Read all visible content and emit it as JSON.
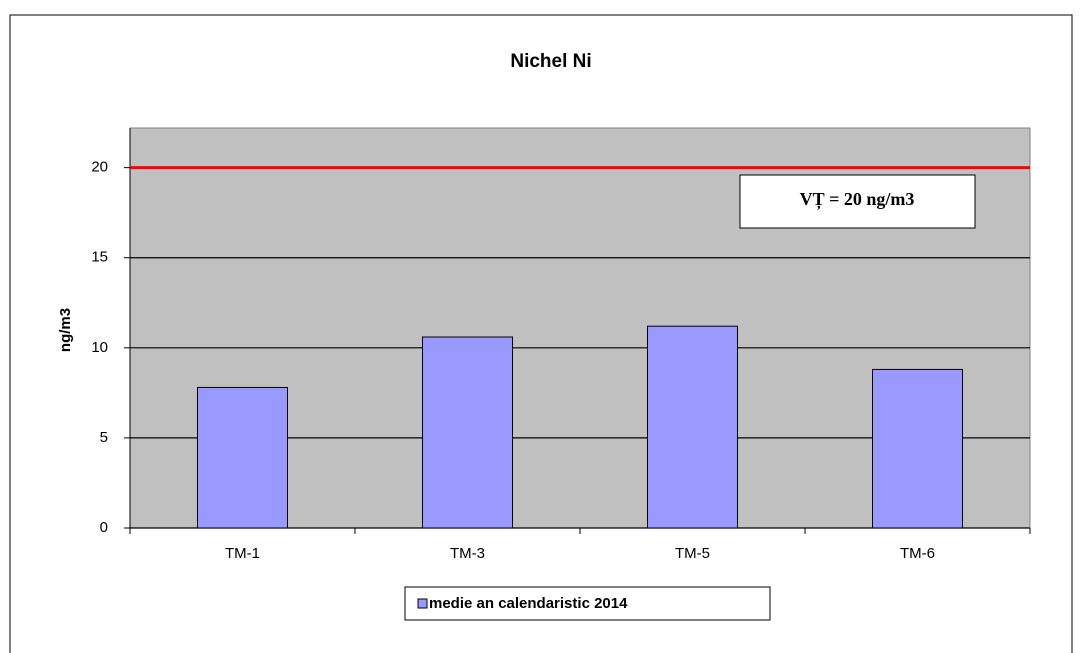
{
  "chart_data": {
    "type": "bar",
    "title": "Nichel Ni",
    "y_label": "ng/m3",
    "categories": [
      "TM-1",
      "TM-3",
      "TM-5",
      "TM-6"
    ],
    "series": [
      {
        "name": "medie an calendaristic 2014",
        "color": "#9999ff",
        "values": [
          7.8,
          10.6,
          11.2,
          8.8
        ]
      }
    ],
    "ylim": [
      0,
      22.2
    ],
    "yticks": [
      0,
      5,
      10,
      15,
      20
    ],
    "grid": true,
    "threshold": {
      "value": 20,
      "color": "#ff0000"
    },
    "annotation": "VȚ = 20 ng/m3",
    "legend": "bottom"
  }
}
